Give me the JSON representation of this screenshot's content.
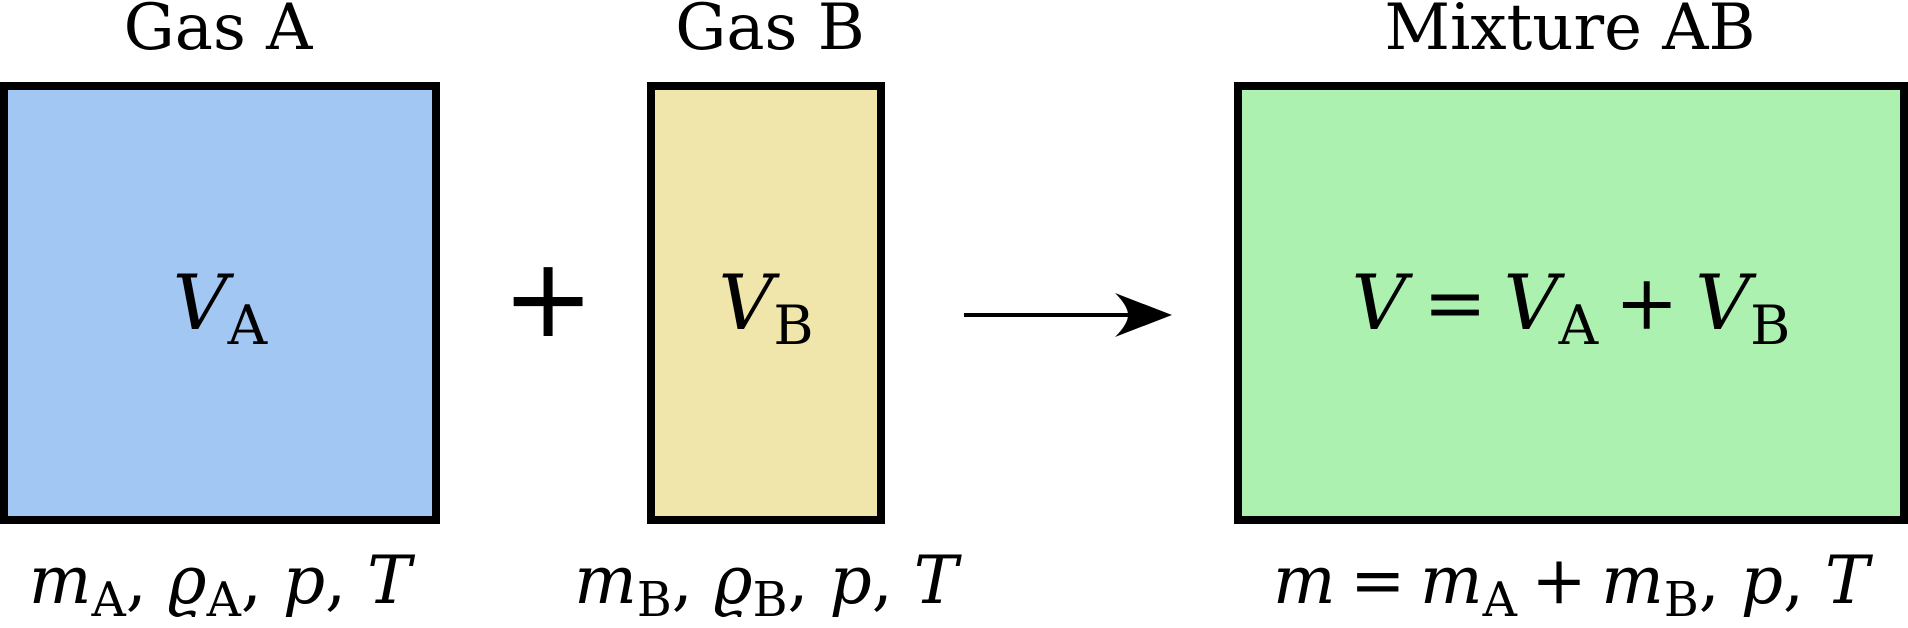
{
  "gas_a": {
    "title": "Gas A",
    "volume_symbol": "V",
    "volume_sub": "A",
    "color": "#a3c7f3",
    "props": {
      "m": "m",
      "m_sub": "A",
      "rho": "ϱ",
      "rho_sub": "A",
      "p": "p",
      "T": "T"
    }
  },
  "plus": "+",
  "gas_b": {
    "title": "Gas B",
    "volume_symbol": "V",
    "volume_sub": "B",
    "color": "#f0e6ac",
    "props": {
      "m": "m",
      "m_sub": "B",
      "rho": "ϱ",
      "rho_sub": "B",
      "p": "p",
      "T": "T"
    }
  },
  "mixture": {
    "title": "Mixture AB",
    "color": "#adf1b1",
    "volume_eq": {
      "V": "V",
      "eq": "=",
      "VA": "V",
      "VA_sub": "A",
      "plus": "+",
      "VB": "V",
      "VB_sub": "B"
    },
    "props": {
      "m": "m",
      "eq": "=",
      "mA": "m",
      "mA_sub": "A",
      "plus": "+",
      "mB": "m",
      "mB_sub": "B",
      "p": "p",
      "T": "T"
    }
  },
  "separator": ",",
  "arrow_icon": "right-arrow-icon"
}
